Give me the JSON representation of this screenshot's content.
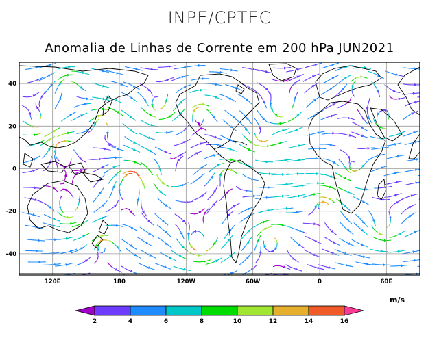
{
  "header": {
    "organization": "INPE/CPTEC",
    "title": "Anomalia de Linhas de Corrente em 200 hPa JUN2021"
  },
  "map": {
    "lat_labels": [
      "40",
      "20",
      "0",
      "-20",
      "-40"
    ],
    "lon_labels": [
      "120E",
      "180",
      "120W",
      "60W",
      "0",
      "60E"
    ],
    "lat_values": [
      40,
      20,
      0,
      -20,
      -40
    ],
    "lon_values": [
      120,
      180,
      240,
      300,
      360,
      420
    ],
    "lon_range": [
      90,
      450
    ],
    "lat_range": [
      -50,
      50
    ]
  },
  "colorbar": {
    "units": "m/s",
    "ticks": [
      "2",
      "4",
      "6",
      "8",
      "10",
      "12",
      "14",
      "16"
    ],
    "colors": [
      "#a000c8",
      "#6e3cff",
      "#1e8cff",
      "#00c8c8",
      "#00dc00",
      "#a0e632",
      "#e6af2d",
      "#f05a28",
      "#fa3c96"
    ]
  }
}
